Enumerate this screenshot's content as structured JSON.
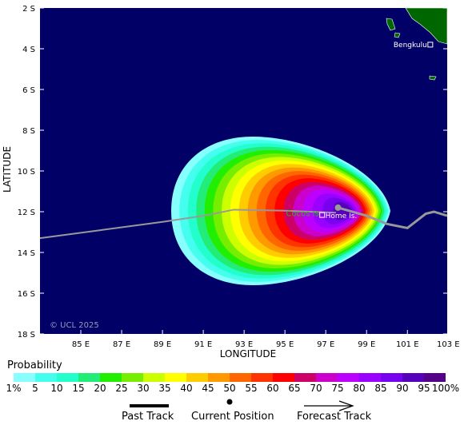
{
  "map": {
    "watermark": "© UCL 2025",
    "x_axis_label": "LONGITUDE",
    "y_axis_label": "LATITUDE",
    "lon_ticks": [
      "85 E",
      "87 E",
      "89 E",
      "91 E",
      "93 E",
      "95 E",
      "97 E",
      "99 E",
      "101 E",
      "103 E"
    ],
    "lon_values": [
      85,
      87,
      89,
      91,
      93,
      95,
      97,
      99,
      101,
      103
    ],
    "lat_ticks": [
      "2 S",
      "4 S",
      "6 S",
      "8 S",
      "10 S",
      "12 S",
      "14 S",
      "16 S",
      "18 S"
    ],
    "lat_values": [
      2,
      4,
      6,
      8,
      10,
      12,
      14,
      16,
      18
    ],
    "lon_range": [
      83.0,
      102.95
    ],
    "lat_range": [
      2.0,
      18.0
    ],
    "places": [
      {
        "name": "Bengkulu",
        "lon": 102.2,
        "lat": 3.8,
        "color": "#ffffff"
      },
      {
        "name": "Home Is.",
        "lon": 96.9,
        "lat": 12.2,
        "color": "#ffffff"
      },
      {
        "name": "Cocos Is.",
        "lon": 96.7,
        "lat": 12.1,
        "color": "#22bb00"
      }
    ],
    "past_track": [
      [
        83.0,
        13.3
      ],
      [
        86,
        12.9
      ],
      [
        89,
        12.5
      ],
      [
        91,
        12.2
      ],
      [
        92.5,
        11.9
      ],
      [
        95,
        11.95
      ],
      [
        97.5,
        12.05
      ]
    ],
    "current_position": {
      "lon": 97.6,
      "lat": 11.8
    },
    "forecast_track": [
      [
        97.6,
        11.8
      ],
      [
        99,
        12.2
      ],
      [
        100,
        12.6
      ],
      [
        101,
        12.8
      ],
      [
        101.9,
        12.1
      ],
      [
        102.3,
        12.0
      ],
      [
        102.95,
        12.2
      ]
    ],
    "colors": {
      "ocean": "#000066",
      "land": "#006600",
      "track": "#999999",
      "frame": "#ffffff"
    }
  },
  "legend": {
    "title": "Probability",
    "tick_labels": [
      "1%",
      "5",
      "10",
      "15",
      "20",
      "25",
      "30",
      "35",
      "40",
      "45",
      "50",
      "55",
      "60",
      "65",
      "70",
      "75",
      "80",
      "85",
      "90",
      "95",
      "100%"
    ],
    "colors": [
      "#88ffff",
      "#44ffee",
      "#22ffcc",
      "#22ee77",
      "#22ee00",
      "#77ee00",
      "#ccff00",
      "#ffff00",
      "#ffcc00",
      "#ff9900",
      "#ff6600",
      "#ff3300",
      "#ff0000",
      "#cc0066",
      "#cc00cc",
      "#bb00ff",
      "#9900ff",
      "#7700ee",
      "#5500bb",
      "#550088"
    ],
    "past_track_label": "Past Track",
    "current_position_label": "Current Position",
    "forecast_track_label": "Forecast Track"
  }
}
